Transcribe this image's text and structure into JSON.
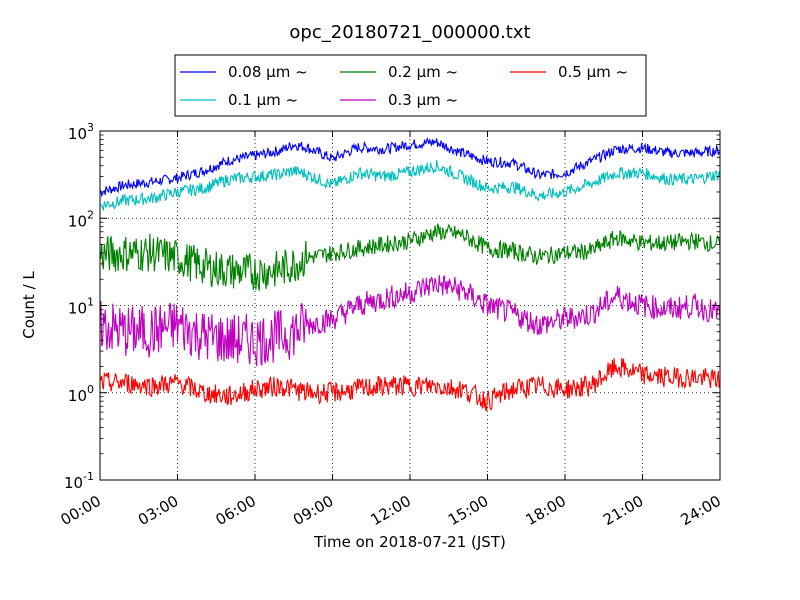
{
  "chart_data": {
    "type": "line",
    "title": "opc_20180721_000000.txt",
    "xlabel": "Time on 2018-07-21 (JST)",
    "ylabel": "Count / L",
    "y_scale": "log",
    "ylim": [
      0.1,
      1000
    ],
    "xlim": [
      0,
      24
    ],
    "x_unit": "hours",
    "x_ticks": [
      "00:00",
      "03:00",
      "06:00",
      "09:00",
      "12:00",
      "15:00",
      "18:00",
      "21:00",
      "24:00"
    ],
    "y_ticks": [
      {
        "base": "10",
        "exp": "-1"
      },
      {
        "base": "10",
        "exp": "0"
      },
      {
        "base": "10",
        "exp": "1"
      },
      {
        "base": "10",
        "exp": "2"
      },
      {
        "base": "10",
        "exp": "3"
      }
    ],
    "grid": true,
    "legend_position": "top-center",
    "series": [
      {
        "name": "0.08 μm ~",
        "color": "#0000ff",
        "x": [
          0,
          1,
          2,
          3,
          4,
          5,
          6,
          7,
          7.5,
          8,
          9,
          10,
          11,
          12,
          13,
          14,
          15,
          16,
          17,
          18,
          19,
          20,
          21,
          22,
          23,
          24
        ],
        "values": [
          200,
          240,
          260,
          290,
          350,
          460,
          520,
          600,
          700,
          650,
          480,
          650,
          620,
          700,
          750,
          560,
          450,
          430,
          310,
          330,
          450,
          620,
          640,
          560,
          560,
          600
        ]
      },
      {
        "name": "0.1 μm ~",
        "color": "#00bfbf",
        "x": [
          0,
          1,
          2,
          3,
          4,
          5,
          6,
          7,
          7.5,
          8,
          9,
          10,
          11,
          12,
          13,
          14,
          15,
          16,
          17,
          18,
          19,
          20,
          21,
          22,
          23,
          24
        ],
        "values": [
          140,
          160,
          170,
          200,
          220,
          280,
          300,
          320,
          350,
          320,
          240,
          330,
          300,
          340,
          400,
          300,
          220,
          230,
          180,
          200,
          250,
          330,
          330,
          280,
          280,
          320
        ]
      },
      {
        "name": "0.2 μm ~",
        "color": "#008000",
        "x": [
          0,
          1,
          2,
          3,
          4,
          5,
          6,
          7,
          7.5,
          8,
          9,
          10,
          11,
          12,
          13,
          14,
          15,
          16,
          17,
          18,
          19,
          20,
          21,
          22,
          23,
          24
        ],
        "values": [
          38,
          40,
          40,
          35,
          28,
          25,
          24,
          26,
          30,
          35,
          40,
          45,
          50,
          55,
          70,
          65,
          45,
          42,
          36,
          40,
          42,
          60,
          52,
          52,
          55,
          50
        ]
      },
      {
        "name": "0.3 μm ~",
        "color": "#bf00bf",
        "x": [
          0,
          1,
          2,
          3,
          4,
          5,
          6,
          7,
          7.5,
          8,
          9,
          10,
          11,
          12,
          13,
          14,
          15,
          16,
          17,
          18,
          19,
          20,
          21,
          22,
          23,
          24
        ],
        "values": [
          6,
          5,
          5,
          6,
          4.5,
          4,
          4,
          4.5,
          5,
          6,
          7,
          10,
          12,
          14,
          18,
          15,
          10,
          8,
          6,
          7,
          8,
          13,
          10,
          9,
          10,
          8
        ]
      },
      {
        "name": "0.5 μm ~",
        "color": "#ff0000",
        "x": [
          0,
          1,
          2,
          3,
          4,
          5,
          6,
          7,
          7.5,
          8,
          9,
          10,
          11,
          12,
          13,
          14,
          15,
          16,
          17,
          18,
          19,
          20,
          21,
          22,
          23,
          24
        ],
        "values": [
          1.3,
          1.3,
          1.2,
          1.3,
          1.0,
          0.9,
          1.1,
          1.2,
          1.1,
          1.0,
          1.0,
          1.1,
          1.2,
          1.2,
          1.2,
          1.1,
          0.8,
          1.1,
          1.2,
          1.1,
          1.2,
          2.0,
          1.6,
          1.5,
          1.5,
          1.4
        ]
      }
    ]
  }
}
